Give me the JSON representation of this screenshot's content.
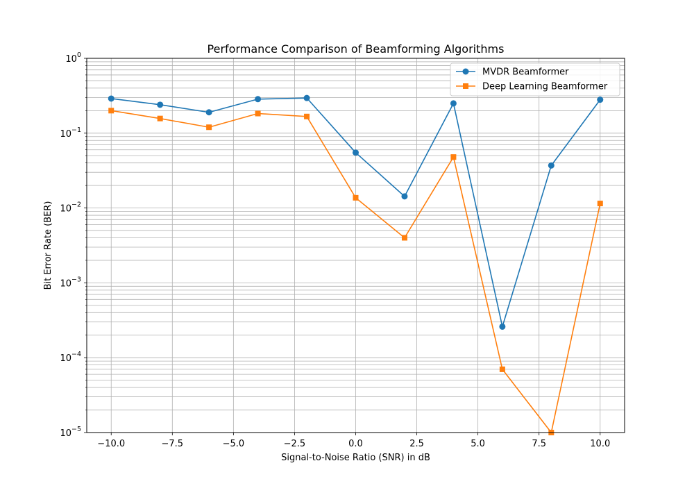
{
  "chart_data": {
    "type": "line",
    "title": "Performance Comparison of Beamforming Algorithms",
    "xlabel": "Signal-to-Noise Ratio (SNR) in dB",
    "ylabel": "Bit Error Rate (BER)",
    "x": [
      -10,
      -8,
      -6,
      -4,
      -2,
      0,
      2,
      4,
      6,
      8,
      10
    ],
    "xlim": [
      -11,
      11
    ],
    "ylim": [
      1e-05,
      1
    ],
    "yscale": "log",
    "grid": true,
    "legend_position": "top-right",
    "xticks": [
      -10,
      -7.5,
      -5,
      -2.5,
      0,
      2.5,
      5,
      7.5,
      10
    ],
    "xtick_labels": [
      "−10.0",
      "−7.5",
      "−5.0",
      "−2.5",
      "0.0",
      "2.5",
      "5.0",
      "7.5",
      "10.0"
    ],
    "yticks": [
      {
        "value": 1e-05,
        "base": "10",
        "exp": "−5"
      },
      {
        "value": 0.0001,
        "base": "10",
        "exp": "−4"
      },
      {
        "value": 0.001,
        "base": "10",
        "exp": "−3"
      },
      {
        "value": 0.01,
        "base": "10",
        "exp": "−2"
      },
      {
        "value": 0.1,
        "base": "10",
        "exp": "−1"
      },
      {
        "value": 1,
        "base": "10",
        "exp": "0"
      }
    ],
    "series": [
      {
        "name": "MVDR Beamformer",
        "color": "#1f77b4",
        "marker": "circle",
        "values": [
          0.29,
          0.24,
          0.19,
          0.285,
          0.295,
          0.055,
          0.0143,
          0.25,
          0.00026,
          0.037,
          0.28
        ]
      },
      {
        "name": "Deep Learning Beamformer",
        "color": "#ff7f0e",
        "marker": "square",
        "values": [
          0.2,
          0.157,
          0.12,
          0.183,
          0.167,
          0.0137,
          0.004,
          0.048,
          7e-05,
          1e-05,
          0.0115
        ]
      }
    ]
  }
}
